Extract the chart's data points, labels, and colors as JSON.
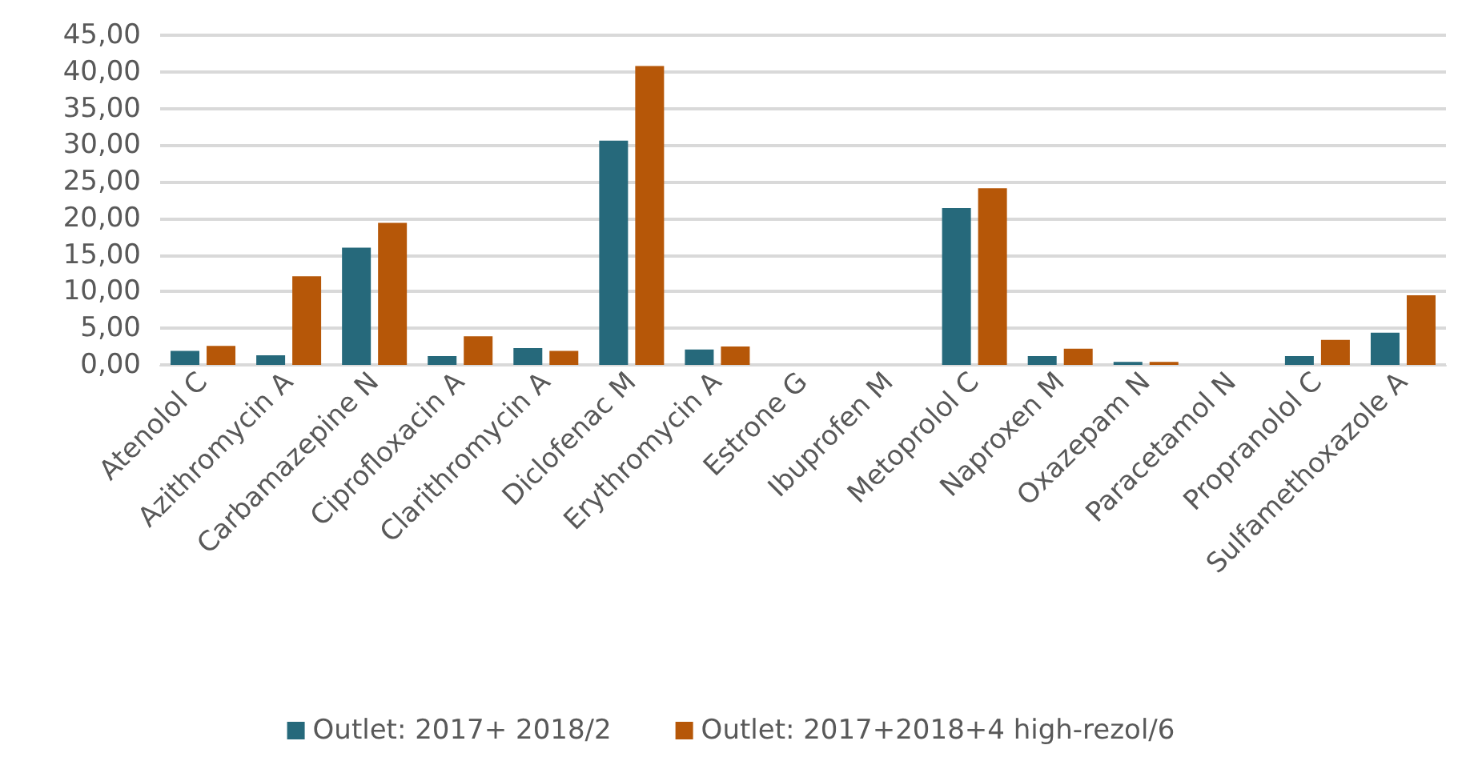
{
  "chart_data": {
    "type": "bar",
    "categories": [
      "Atenolol C",
      "Azithromycin A",
      "Carbamazepine N",
      "Ciprofloxacin A",
      "Clarithromycin A",
      "Diclofenac M",
      "Erythromycin A",
      "Estrone G",
      "Ibuprofen M",
      "Metoprolol C",
      "Naproxen M",
      "Oxazepam N",
      "Paracetamol N",
      "Propranolol C",
      "Sulfamethoxazole A"
    ],
    "series": [
      {
        "name": "Outlet: 2017+ 2018/2",
        "color": "#26697b",
        "values": [
          1.9,
          1.3,
          16.0,
          1.2,
          2.3,
          30.6,
          2.1,
          null,
          null,
          21.4,
          1.2,
          0.4,
          null,
          1.2,
          4.4
        ]
      },
      {
        "name": "Outlet: 2017+2018+4 high-rezol/6",
        "color": "#b65708",
        "values": [
          2.6,
          12.1,
          19.4,
          3.9,
          1.9,
          40.8,
          2.5,
          null,
          null,
          24.1,
          2.2,
          0.4,
          null,
          3.4,
          9.5
        ]
      }
    ],
    "ylim": [
      0,
      45
    ],
    "yticks": [
      {
        "value": 0,
        "label": "0,00"
      },
      {
        "value": 5,
        "label": "5,00"
      },
      {
        "value": 10,
        "label": "10,00"
      },
      {
        "value": 15,
        "label": "15,00"
      },
      {
        "value": 20,
        "label": "20,00"
      },
      {
        "value": 25,
        "label": "25,00"
      },
      {
        "value": 30,
        "label": "30,00"
      },
      {
        "value": 35,
        "label": "35,00"
      },
      {
        "value": 40,
        "label": "40,00"
      },
      {
        "value": 45,
        "label": "45,00"
      }
    ],
    "grid": "y",
    "legend": "bottom",
    "marker": "square"
  }
}
